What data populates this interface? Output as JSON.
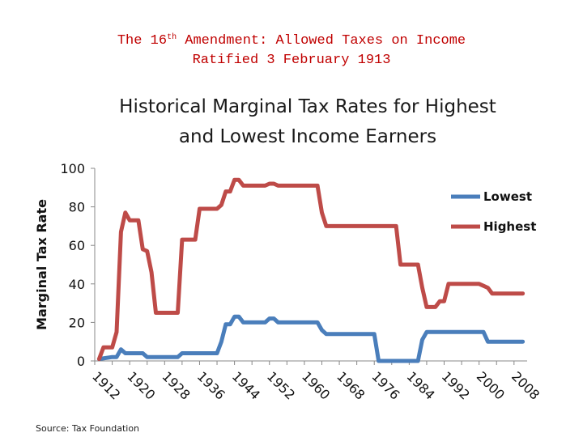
{
  "header": {
    "line1_prefix": "The 16",
    "line1_sup": "th",
    "line1_suffix": " Amendment: Allowed Taxes on Income",
    "line2": "Ratified 3 February 1913"
  },
  "source_note": "Source: Tax Foundation",
  "colors": {
    "header": "#c00000",
    "lowest": "#4a7ebb",
    "highest": "#be4b48",
    "axis": "#888888"
  },
  "chart_data": {
    "type": "line",
    "title_line1": "Historical Marginal Tax Rates for Highest",
    "title_line2": "and Lowest Income Earners",
    "ylabel": "Marginal Tax Rate",
    "xlabel": "",
    "xlim": [
      1912,
      2011
    ],
    "ylim": [
      0,
      100
    ],
    "yticks": [
      "0",
      "20",
      "40",
      "60",
      "80",
      "100"
    ],
    "xticks": [
      "1912",
      "1920",
      "1928",
      "1936",
      "1944",
      "1952",
      "1960",
      "1968",
      "1976",
      "1984",
      "1992",
      "2000",
      "2008"
    ],
    "legend_position": "right",
    "series": [
      {
        "name": "Lowest",
        "color": "#4a7ebb",
        "points": [
          [
            1913,
            1
          ],
          [
            1916,
            2
          ],
          [
            1917,
            2
          ],
          [
            1918,
            6
          ],
          [
            1919,
            4
          ],
          [
            1923,
            4
          ],
          [
            1924,
            2
          ],
          [
            1931,
            2
          ],
          [
            1932,
            4
          ],
          [
            1940,
            4
          ],
          [
            1941,
            10
          ],
          [
            1942,
            19
          ],
          [
            1943,
            19
          ],
          [
            1944,
            23
          ],
          [
            1945,
            23
          ],
          [
            1946,
            20
          ],
          [
            1951,
            20
          ],
          [
            1952,
            22
          ],
          [
            1953,
            22
          ],
          [
            1954,
            20
          ],
          [
            1963,
            20
          ],
          [
            1964,
            16
          ],
          [
            1965,
            14
          ],
          [
            1976,
            14
          ],
          [
            1977,
            0
          ],
          [
            1986,
            0
          ],
          [
            1987,
            11
          ],
          [
            1988,
            15
          ],
          [
            2001,
            15
          ],
          [
            2002,
            10
          ],
          [
            2010,
            10
          ]
        ]
      },
      {
        "name": "Highest",
        "color": "#be4b48",
        "points": [
          [
            1913,
            1
          ],
          [
            1914,
            7
          ],
          [
            1916,
            7
          ],
          [
            1917,
            15
          ],
          [
            1918,
            67
          ],
          [
            1919,
            77
          ],
          [
            1920,
            73
          ],
          [
            1922,
            73
          ],
          [
            1923,
            58
          ],
          [
            1924,
            57
          ],
          [
            1925,
            46
          ],
          [
            1926,
            25
          ],
          [
            1931,
            25
          ],
          [
            1932,
            63
          ],
          [
            1935,
            63
          ],
          [
            1936,
            79
          ],
          [
            1940,
            79
          ],
          [
            1941,
            81
          ],
          [
            1942,
            88
          ],
          [
            1943,
            88
          ],
          [
            1944,
            94
          ],
          [
            1945,
            94
          ],
          [
            1946,
            91
          ],
          [
            1951,
            91
          ],
          [
            1952,
            92
          ],
          [
            1953,
            92
          ],
          [
            1954,
            91
          ],
          [
            1963,
            91
          ],
          [
            1964,
            77
          ],
          [
            1965,
            70
          ],
          [
            1981,
            70
          ],
          [
            1982,
            50
          ],
          [
            1986,
            50
          ],
          [
            1987,
            38
          ],
          [
            1988,
            28
          ],
          [
            1990,
            28
          ],
          [
            1991,
            31
          ],
          [
            1992,
            31
          ],
          [
            1993,
            40
          ],
          [
            2000,
            40
          ],
          [
            2001,
            39
          ],
          [
            2002,
            38
          ],
          [
            2003,
            35
          ],
          [
            2010,
            35
          ]
        ]
      }
    ]
  }
}
